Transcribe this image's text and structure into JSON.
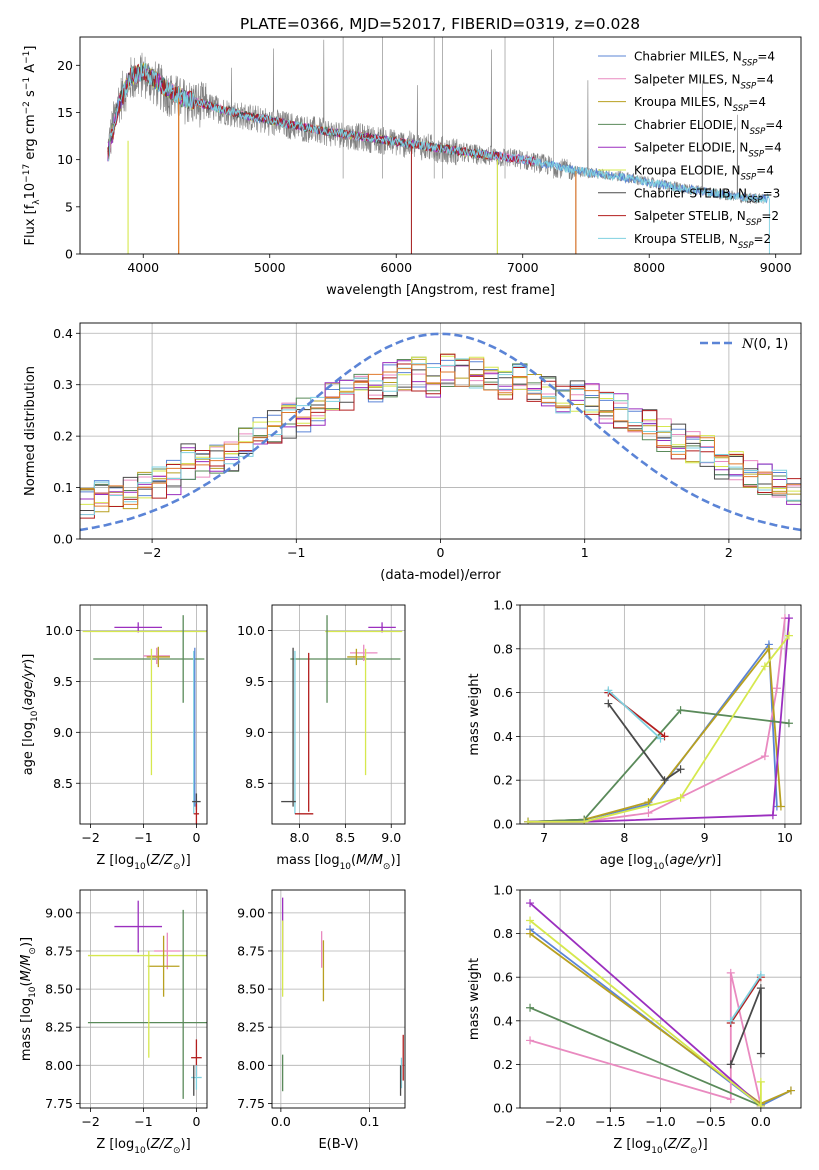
{
  "title": "PLATE=0366, MJD=52017, FIBERID=0319, z=0.028",
  "colors": [
    "#5b84d6",
    "#e98ac0",
    "#b8a020",
    "#5a8a5a",
    "#9b2fbf",
    "#d6e84e",
    "#4a4a4a",
    "#b21e1e",
    "#7fd1e0"
  ],
  "extra_colors": {
    "orange": "#e07a2c",
    "gray": "#808080",
    "gauss": "#5b84d6"
  },
  "legend": {
    "spectrum": [
      "Chabrier MILES, N$_{SSP}$=4",
      "Salpeter MILES, N$_{SSP}$=4",
      "Kroupa MILES, N$_{SSP}$=4",
      "Chabrier ELODIE, N$_{SSP}$=4",
      "Salpeter ELODIE, N$_{SSP}$=4",
      "Kroupa ELODIE, N$_{SSP}$=4",
      "Chabrier STELIB, N$_{SSP}$=3",
      "Salpeter STELIB, N$_{SSP}$=2",
      "Kroupa STELIB, N$_{SSP}$=2"
    ],
    "residual": "N(0, 1)"
  },
  "chart_data": [
    {
      "id": "spectrum",
      "type": "line",
      "xlabel": "wavelength [Angstrom, rest frame]",
      "ylabel": "Flux [f_λ 10^-17 erg cm^-2 s^-1 A^-1]",
      "xlim": [
        3500,
        9200
      ],
      "ylim": [
        0,
        23
      ],
      "xticks": [
        4000,
        5000,
        6000,
        7000,
        8000,
        9000
      ],
      "yticks": [
        0,
        5,
        10,
        15,
        20
      ],
      "data_series": {
        "name": "data",
        "x": [
          3720,
          3800,
          3900,
          4000,
          4100,
          4200,
          4300,
          4400,
          4500,
          4600,
          4800,
          5000,
          5200,
          5400,
          5600,
          5800,
          6000,
          6200,
          6400,
          6600,
          6800,
          7000,
          7200,
          7400,
          7600,
          7800,
          8000,
          8200,
          8400,
          8600,
          8800,
          8900
        ],
        "y": [
          11,
          16,
          18.5,
          19,
          18,
          17,
          16.3,
          16,
          15.7,
          15.3,
          14.6,
          14,
          13.5,
          13,
          12.6,
          12.2,
          11.8,
          11.4,
          11,
          10.6,
          10.3,
          10,
          9.4,
          8.8,
          8.5,
          8.2,
          7.6,
          7.1,
          6.7,
          6.3,
          5.9,
          5.9
        ]
      },
      "model_series_approx": {
        "x": [
          3720,
          3800,
          3900,
          4000,
          4100,
          4200,
          4300,
          4400,
          4500,
          4600,
          4800,
          5000,
          5200,
          5400,
          5600,
          5800,
          6000,
          6200,
          6400,
          6600,
          6800,
          7000,
          7200,
          7400,
          7600,
          7800,
          8000,
          8200,
          8400,
          8600,
          8800,
          8900
        ],
        "y": [
          10.5,
          15.5,
          18.8,
          19.4,
          18.4,
          17.4,
          16.6,
          16.2,
          15.8,
          15.4,
          14.7,
          14.2,
          13.6,
          13.1,
          12.7,
          12.3,
          11.9,
          11.5,
          11.1,
          10.7,
          10.4,
          10.0,
          9.5,
          8.9,
          8.5,
          8.1,
          7.6,
          7.1,
          6.7,
          6.3,
          5.9,
          5.9
        ]
      },
      "model_ends": [
        8950,
        7100,
        4280,
        6800,
        7100,
        6800,
        6800,
        7100,
        8950
      ],
      "model_drop_wavelengths": [
        7420,
        7420,
        4280,
        6800,
        6800,
        6800,
        6120,
        6120,
        8950
      ]
    },
    {
      "id": "residuals",
      "type": "histogram",
      "xlabel": "(data-model)/error",
      "ylabel": "Normed distribution",
      "xlim": [
        -2.5,
        2.5
      ],
      "ylim": [
        0,
        0.42
      ],
      "xticks": [
        -2,
        -1,
        0,
        1,
        2
      ],
      "yticks": [
        0.0,
        0.1,
        0.2,
        0.3,
        0.4
      ],
      "bin_edges_start": -2.6,
      "bin_width": 0.1,
      "base_distribution": [
        0.06,
        0.07,
        0.08,
        0.09,
        0.09,
        0.1,
        0.11,
        0.12,
        0.15,
        0.14,
        0.15,
        0.16,
        0.19,
        0.21,
        0.22,
        0.23,
        0.24,
        0.25,
        0.27,
        0.28,
        0.29,
        0.3,
        0.31,
        0.32,
        0.32,
        0.31,
        0.33,
        0.32,
        0.32,
        0.31,
        0.3,
        0.31,
        0.3,
        0.29,
        0.28,
        0.28,
        0.27,
        0.26,
        0.25,
        0.23,
        0.22,
        0.2,
        0.19,
        0.18,
        0.17,
        0.15,
        0.14,
        0.13,
        0.12,
        0.11,
        0.1,
        0.09
      ],
      "gaussian": {
        "mean": 0,
        "sigma": 1,
        "style": "dashed"
      }
    },
    {
      "id": "age_vs_Z",
      "type": "errorbar",
      "xlabel": "Z [log10(Z/Z_sun)]",
      "ylabel": "age [log10(age/yr)]",
      "xlim": [
        -2.2,
        0.2
      ],
      "ylim": [
        8.1,
        10.25
      ],
      "xticks": [
        -2,
        -1,
        0
      ],
      "yticks": [
        8.5,
        9.0,
        9.5,
        10.0
      ],
      "points": [
        {
          "series": 4,
          "x": -1.1,
          "xerr": 0.45,
          "y": 10.03,
          "yerr": 0.05
        },
        {
          "series": 5,
          "x": -0.9,
          "xerr": 1.25,
          "y": 9.99,
          "yerr": 0.0
        },
        {
          "series": 3,
          "x": -0.25,
          "xerr": 0.0,
          "y": 9.72,
          "yerr": 0.43
        },
        {
          "series": 3,
          "x": -0.9,
          "xerr": 1.05,
          "y": 9.72,
          "yerr": 0.0
        },
        {
          "series": 1,
          "x": -0.75,
          "xerr": 0.25,
          "y": 9.75,
          "yerr": 0.08
        },
        {
          "series": 2,
          "x": -0.72,
          "xerr": 0.22,
          "y": 9.74,
          "yerr": 0.1
        },
        {
          "series": 5,
          "x": -0.85,
          "xerr": 0.0,
          "y": 9.2,
          "yerr": 0.62
        },
        {
          "series": 8,
          "x": -0.05,
          "xerr": 0.0,
          "y": 9.0,
          "yerr": 0.8
        },
        {
          "series": 0,
          "x": -0.03,
          "xerr": 0.0,
          "y": 9.05,
          "yerr": 0.78
        },
        {
          "series": 6,
          "x": 0.0,
          "xerr": 0.08,
          "y": 8.32,
          "yerr": 0.08
        },
        {
          "series": 7,
          "x": 0.0,
          "xerr": 0.05,
          "y": 8.2,
          "yerr": 0.1
        }
      ]
    },
    {
      "id": "age_vs_mass",
      "type": "errorbar",
      "xlabel": "mass [log10(M/M_sun)]",
      "ylabel": "",
      "xlim": [
        7.7,
        9.15
      ],
      "ylim": [
        8.1,
        10.25
      ],
      "xticks": [
        8.0,
        8.5,
        9.0
      ],
      "yticks": [
        8.5,
        9.0,
        9.5,
        10.0
      ],
      "points": [
        {
          "series": 4,
          "x": 8.9,
          "xerr": 0.15,
          "y": 10.03,
          "yerr": 0.05
        },
        {
          "series": 5,
          "x": 8.7,
          "xerr": 0.42,
          "y": 9.99,
          "yerr": 0.0
        },
        {
          "series": 3,
          "x": 8.3,
          "xerr": 0.0,
          "y": 9.72,
          "yerr": 0.43
        },
        {
          "series": 3,
          "x": 8.5,
          "xerr": 0.6,
          "y": 9.72,
          "yerr": 0.0
        },
        {
          "series": 1,
          "x": 8.7,
          "xerr": 0.15,
          "y": 9.78,
          "yerr": 0.08
        },
        {
          "series": 2,
          "x": 8.62,
          "xerr": 0.1,
          "y": 9.74,
          "yerr": 0.08
        },
        {
          "series": 5,
          "x": 8.72,
          "xerr": 0.0,
          "y": 9.2,
          "yerr": 0.62
        },
        {
          "series": 7,
          "x": 8.1,
          "xerr": 0.0,
          "y": 9.0,
          "yerr": 0.78
        },
        {
          "series": 8,
          "x": 7.95,
          "xerr": 0.0,
          "y": 9.0,
          "yerr": 0.8
        },
        {
          "series": 6,
          "x": 7.93,
          "xerr": 0.0,
          "y": 9.05,
          "yerr": 0.78
        },
        {
          "series": 6,
          "x": 7.88,
          "xerr": 0.08,
          "y": 8.32,
          "yerr": 0.0
        },
        {
          "series": 7,
          "x": 8.05,
          "xerr": 0.1,
          "y": 8.2,
          "yerr": 0.0
        }
      ]
    },
    {
      "id": "massweight_vs_age",
      "type": "line",
      "xlabel": "age [log10(age/yr)]",
      "ylabel": "mass weight",
      "xlim": [
        6.7,
        10.2
      ],
      "ylim": [
        0.0,
        1.0
      ],
      "xticks": [
        7,
        8,
        9,
        10
      ],
      "yticks": [
        0.0,
        0.2,
        0.4,
        0.6,
        0.8,
        1.0
      ],
      "series": [
        {
          "color": 0,
          "x": [
            6.8,
            7.5,
            8.3,
            9.8,
            9.9
          ],
          "y": [
            0.01,
            0.02,
            0.09,
            0.82,
            0.08
          ]
        },
        {
          "color": 1,
          "x": [
            6.8,
            7.5,
            8.3,
            9.75,
            9.9,
            10.0
          ],
          "y": [
            0.01,
            0.01,
            0.05,
            0.31,
            0.62,
            0.94
          ]
        },
        {
          "color": 2,
          "x": [
            6.8,
            7.5,
            8.3,
            9.8,
            9.95
          ],
          "y": [
            0.01,
            0.02,
            0.1,
            0.8,
            0.08
          ]
        },
        {
          "color": 3,
          "x": [
            6.8,
            7.5,
            8.7,
            10.05
          ],
          "y": [
            0.01,
            0.02,
            0.52,
            0.46
          ]
        },
        {
          "color": 4,
          "x": [
            6.8,
            7.5,
            9.85,
            10.05
          ],
          "y": [
            0.01,
            0.01,
            0.04,
            0.94
          ]
        },
        {
          "color": 5,
          "x": [
            6.8,
            7.5,
            8.7,
            9.75,
            10.05
          ],
          "y": [
            0.01,
            0.01,
            0.12,
            0.72,
            0.86
          ]
        },
        {
          "color": 6,
          "x": [
            7.8,
            8.5,
            8.7
          ],
          "y": [
            0.55,
            0.2,
            0.25
          ]
        },
        {
          "color": 7,
          "x": [
            7.8,
            8.5
          ],
          "y": [
            0.6,
            0.4
          ]
        },
        {
          "color": 8,
          "x": [
            7.8,
            8.45
          ],
          "y": [
            0.61,
            0.39
          ]
        }
      ]
    },
    {
      "id": "mass_vs_Z",
      "type": "errorbar",
      "xlabel": "Z [log10(Z/Z_sun)]",
      "ylabel": "mass [log10(M/M_sun)]",
      "xlim": [
        -2.2,
        0.2
      ],
      "ylim": [
        7.72,
        9.15
      ],
      "xticks": [
        -2,
        -1,
        0
      ],
      "yticks": [
        7.75,
        8.0,
        8.25,
        8.5,
        8.75,
        9.0
      ],
      "points": [
        {
          "series": 4,
          "x": -1.1,
          "xerr": 0.45,
          "y": 8.91,
          "yerr": 0.17
        },
        {
          "series": 5,
          "x": -0.9,
          "xerr": 1.15,
          "y": 8.72,
          "yerr": 0.0
        },
        {
          "series": 1,
          "x": -0.55,
          "xerr": 0.25,
          "y": 8.75,
          "yerr": 0.12
        },
        {
          "series": 2,
          "x": -0.62,
          "xerr": 0.3,
          "y": 8.65,
          "yerr": 0.2
        },
        {
          "series": 3,
          "x": -0.25,
          "xerr": 0.0,
          "y": 8.4,
          "yerr": 0.62
        },
        {
          "series": 3,
          "x": -0.9,
          "xerr": 1.15,
          "y": 8.28,
          "yerr": 0.0
        },
        {
          "series": 5,
          "x": -0.9,
          "xerr": 0.0,
          "y": 8.4,
          "yerr": 0.35
        },
        {
          "series": 7,
          "x": 0.0,
          "xerr": 0.1,
          "y": 8.05,
          "yerr": 0.12
        },
        {
          "series": 8,
          "x": 0.0,
          "xerr": 0.1,
          "y": 7.92,
          "yerr": 0.08
        },
        {
          "series": 6,
          "x": -0.05,
          "xerr": 0.0,
          "y": 7.9,
          "yerr": 0.1
        }
      ]
    },
    {
      "id": "mass_vs_ebv",
      "type": "errorbar",
      "xlabel": "E(B-V)",
      "ylabel": "",
      "xlim": [
        -0.01,
        0.14
      ],
      "ylim": [
        7.72,
        9.15
      ],
      "xticks": [
        0.0,
        0.1
      ],
      "yticks": [
        7.75,
        8.0,
        8.25,
        8.5,
        8.75,
        9.0
      ],
      "points": [
        {
          "series": 4,
          "x": 0.002,
          "xerr": 0.0,
          "y": 8.92,
          "yerr": 0.18
        },
        {
          "series": 5,
          "x": 0.002,
          "xerr": 0.0,
          "y": 8.7,
          "yerr": 0.25
        },
        {
          "series": 3,
          "x": 0.002,
          "xerr": 0.0,
          "y": 7.95,
          "yerr": 0.12
        },
        {
          "series": 1,
          "x": 0.046,
          "xerr": 0.0,
          "y": 8.76,
          "yerr": 0.12
        },
        {
          "series": 2,
          "x": 0.048,
          "xerr": 0.0,
          "y": 8.62,
          "yerr": 0.2
        },
        {
          "series": 7,
          "x": 0.138,
          "xerr": 0.0,
          "y": 8.05,
          "yerr": 0.15
        },
        {
          "series": 8,
          "x": 0.136,
          "xerr": 0.0,
          "y": 7.95,
          "yerr": 0.1
        },
        {
          "series": 6,
          "x": 0.135,
          "xerr": 0.0,
          "y": 7.9,
          "yerr": 0.1
        }
      ]
    },
    {
      "id": "massweight_vs_Z",
      "type": "line",
      "xlabel": "Z [log10(Z/Z_sun)]",
      "ylabel": "mass weight",
      "xlim": [
        -2.4,
        0.4
      ],
      "ylim": [
        0.0,
        1.0
      ],
      "xticks": [
        -2.0,
        -1.5,
        -1.0,
        -0.5,
        0.0
      ],
      "yticks": [
        0.0,
        0.2,
        0.4,
        0.6,
        0.8,
        1.0
      ],
      "series": [
        {
          "color": 0,
          "x": [
            -2.3,
            0.0,
            0.3
          ],
          "y": [
            0.82,
            0.01,
            0.08
          ]
        },
        {
          "color": 1,
          "x": [
            -2.3,
            -0.3,
            -0.3,
            0.0
          ],
          "y": [
            0.31,
            0.04,
            0.62,
            0.01
          ]
        },
        {
          "color": 2,
          "x": [
            -2.3,
            0.0,
            0.3
          ],
          "y": [
            0.8,
            0.02,
            0.08
          ]
        },
        {
          "color": 3,
          "x": [
            -2.3,
            0.0
          ],
          "y": [
            0.46,
            0.01
          ]
        },
        {
          "color": 4,
          "x": [
            -2.3,
            0.0
          ],
          "y": [
            0.94,
            0.01
          ]
        },
        {
          "color": 5,
          "x": [
            -2.3,
            0.0,
            0.0
          ],
          "y": [
            0.86,
            0.01,
            0.12
          ]
        },
        {
          "color": 6,
          "x": [
            -0.3,
            0.0,
            0.0
          ],
          "y": [
            0.2,
            0.55,
            0.25
          ]
        },
        {
          "color": 7,
          "x": [
            -0.3,
            0.0
          ],
          "y": [
            0.39,
            0.6
          ]
        },
        {
          "color": 8,
          "x": [
            -0.3,
            0.0
          ],
          "y": [
            0.4,
            0.61
          ]
        }
      ]
    }
  ]
}
